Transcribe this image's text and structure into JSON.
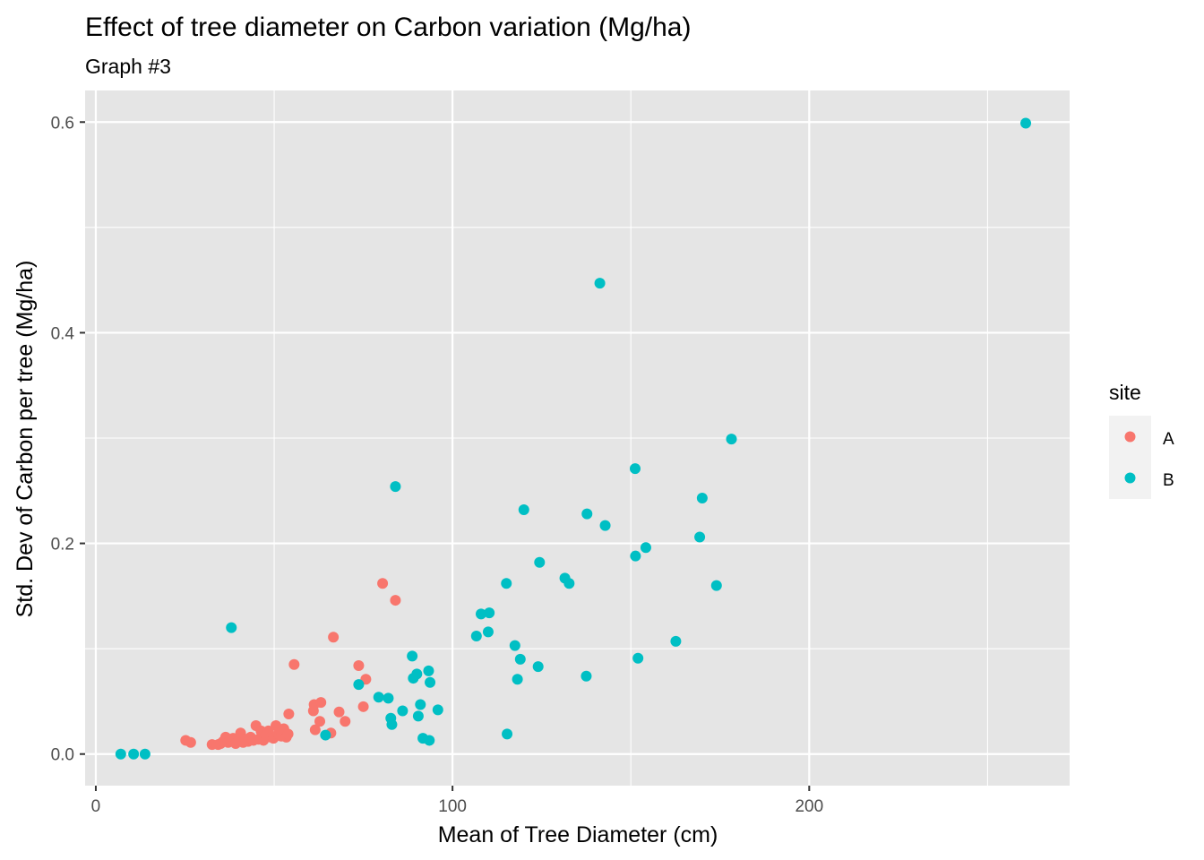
{
  "chart_data": {
    "type": "scatter",
    "title": "Effect of tree diameter on Carbon variation (Mg/ha)",
    "subtitle": "Graph #3",
    "xlabel": "Mean of Tree Diameter (cm)",
    "ylabel": "Std. Dev of Carbon per tree (Mg/ha)",
    "xlim": [
      -3,
      273
    ],
    "ylim": [
      -0.03,
      0.63
    ],
    "x_ticks": [
      0,
      100,
      200
    ],
    "x_tick_labels": [
      "0",
      "100",
      "200"
    ],
    "y_ticks": [
      0.0,
      0.2,
      0.4,
      0.6
    ],
    "y_tick_labels": [
      "0.0",
      "0.2",
      "0.4",
      "0.6"
    ],
    "grid": true,
    "legend": {
      "title": "site",
      "position": "right"
    },
    "colors": {
      "A": "#F8766D",
      "B": "#00BFC4",
      "panel": "#E5E5E5",
      "grid": "#FFFFFF"
    },
    "series": [
      {
        "name": "A",
        "color": "#F8766D",
        "points": [
          [
            25.2,
            0.013
          ],
          [
            26.6,
            0.011
          ],
          [
            32.6,
            0.009
          ],
          [
            34.3,
            0.009
          ],
          [
            35.0,
            0.01
          ],
          [
            35.7,
            0.012
          ],
          [
            36.4,
            0.016
          ],
          [
            37.1,
            0.011
          ],
          [
            37.8,
            0.013
          ],
          [
            38.5,
            0.015
          ],
          [
            39.2,
            0.01
          ],
          [
            39.9,
            0.012
          ],
          [
            40.6,
            0.02
          ],
          [
            41.3,
            0.011
          ],
          [
            42.0,
            0.014
          ],
          [
            42.7,
            0.012
          ],
          [
            43.4,
            0.016
          ],
          [
            44.2,
            0.013
          ],
          [
            44.9,
            0.027
          ],
          [
            45.6,
            0.014
          ],
          [
            46.3,
            0.022
          ],
          [
            47.0,
            0.013
          ],
          [
            47.7,
            0.018
          ],
          [
            48.4,
            0.022
          ],
          [
            49.1,
            0.016
          ],
          [
            49.8,
            0.015
          ],
          [
            50.5,
            0.027
          ],
          [
            51.2,
            0.019
          ],
          [
            52.0,
            0.017
          ],
          [
            52.7,
            0.024
          ],
          [
            53.4,
            0.016
          ],
          [
            53.9,
            0.019
          ],
          [
            54.1,
            0.038
          ],
          [
            55.6,
            0.085
          ],
          [
            61.0,
            0.041
          ],
          [
            61.2,
            0.047
          ],
          [
            61.5,
            0.023
          ],
          [
            62.8,
            0.031
          ],
          [
            63.1,
            0.049
          ],
          [
            65.9,
            0.02
          ],
          [
            66.6,
            0.111
          ],
          [
            68.2,
            0.04
          ],
          [
            69.9,
            0.031
          ],
          [
            73.7,
            0.084
          ],
          [
            75.0,
            0.045
          ],
          [
            75.7,
            0.071
          ],
          [
            80.4,
            0.162
          ],
          [
            84.0,
            0.146
          ]
        ]
      },
      {
        "name": "B",
        "color": "#00BFC4",
        "points": [
          [
            7.0,
            0.0
          ],
          [
            10.6,
            0.0
          ],
          [
            13.8,
            0.0
          ],
          [
            38.0,
            0.12
          ],
          [
            64.4,
            0.018
          ],
          [
            73.7,
            0.066
          ],
          [
            79.3,
            0.054
          ],
          [
            82.0,
            0.053
          ],
          [
            82.7,
            0.034
          ],
          [
            83.0,
            0.028
          ],
          [
            84.0,
            0.254
          ],
          [
            86.0,
            0.041
          ],
          [
            88.7,
            0.093
          ],
          [
            89.0,
            0.072
          ],
          [
            90.0,
            0.076
          ],
          [
            90.4,
            0.036
          ],
          [
            91.0,
            0.047
          ],
          [
            91.7,
            0.015
          ],
          [
            93.3,
            0.079
          ],
          [
            93.5,
            0.013
          ],
          [
            93.7,
            0.068
          ],
          [
            95.9,
            0.042
          ],
          [
            106.7,
            0.112
          ],
          [
            108.0,
            0.133
          ],
          [
            110.0,
            0.116
          ],
          [
            110.3,
            0.134
          ],
          [
            115.1,
            0.162
          ],
          [
            115.3,
            0.019
          ],
          [
            117.5,
            0.103
          ],
          [
            118.2,
            0.071
          ],
          [
            119.0,
            0.09
          ],
          [
            120.0,
            0.232
          ],
          [
            124.0,
            0.083
          ],
          [
            124.4,
            0.182
          ],
          [
            131.5,
            0.167
          ],
          [
            132.7,
            0.162
          ],
          [
            137.5,
            0.074
          ],
          [
            137.7,
            0.228
          ],
          [
            141.3,
            0.447
          ],
          [
            142.8,
            0.217
          ],
          [
            151.2,
            0.271
          ],
          [
            151.3,
            0.188
          ],
          [
            152.0,
            0.091
          ],
          [
            154.2,
            0.196
          ],
          [
            162.6,
            0.107
          ],
          [
            174.0,
            0.16
          ],
          [
            169.3,
            0.206
          ],
          [
            170.0,
            0.243
          ],
          [
            178.2,
            0.299
          ],
          [
            260.7,
            0.599
          ]
        ]
      }
    ]
  }
}
